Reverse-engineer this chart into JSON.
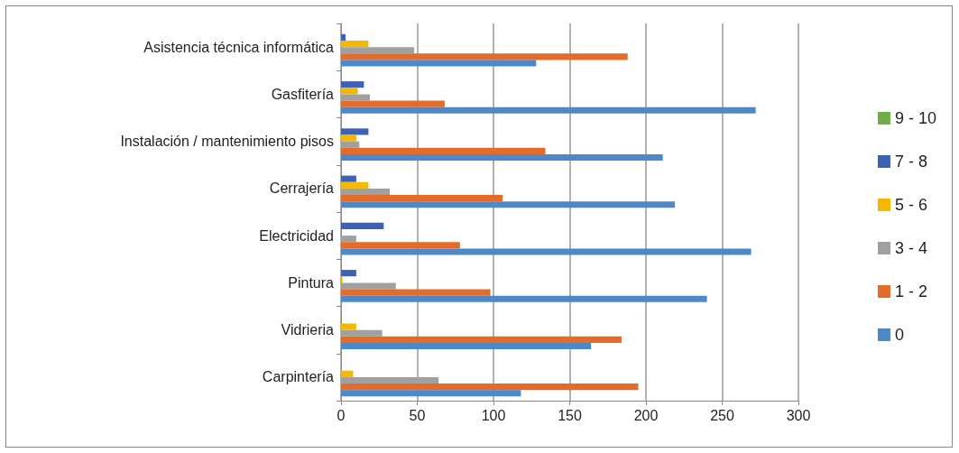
{
  "chart_data": {
    "type": "bar",
    "orientation": "horizontal",
    "categories": [
      "Asistencia técnica informática",
      "Gasfitería",
      "Instalación / mantenimiento pisos",
      "Cerrajería",
      "Electricidad",
      "Pintura",
      "Vidrieria",
      "Carpintería"
    ],
    "series": [
      {
        "name": "9 - 10",
        "color": "#70ad47",
        "values": [
          0,
          0,
          0,
          0,
          0,
          0,
          0,
          0
        ]
      },
      {
        "name": "7 - 8",
        "color": "#3d62b5",
        "values": [
          3,
          15,
          18,
          10,
          28,
          10,
          0,
          0
        ]
      },
      {
        "name": "5 - 6",
        "color": "#f5b800",
        "values": [
          18,
          11,
          10,
          18,
          0,
          1,
          10,
          8
        ]
      },
      {
        "name": "3 - 4",
        "color": "#a0a0a0",
        "values": [
          48,
          19,
          12,
          32,
          10,
          36,
          27,
          64
        ]
      },
      {
        "name": "1 - 2",
        "color": "#e36c2a",
        "values": [
          188,
          68,
          134,
          106,
          78,
          98,
          184,
          195
        ]
      },
      {
        "name": "0",
        "color": "#4f88c6",
        "values": [
          128,
          272,
          211,
          219,
          269,
          240,
          164,
          118
        ]
      }
    ],
    "xlim": [
      0,
      300
    ],
    "xticks": [
      0,
      50,
      100,
      150,
      200,
      250,
      300
    ],
    "grid": "x",
    "legend": "right"
  }
}
